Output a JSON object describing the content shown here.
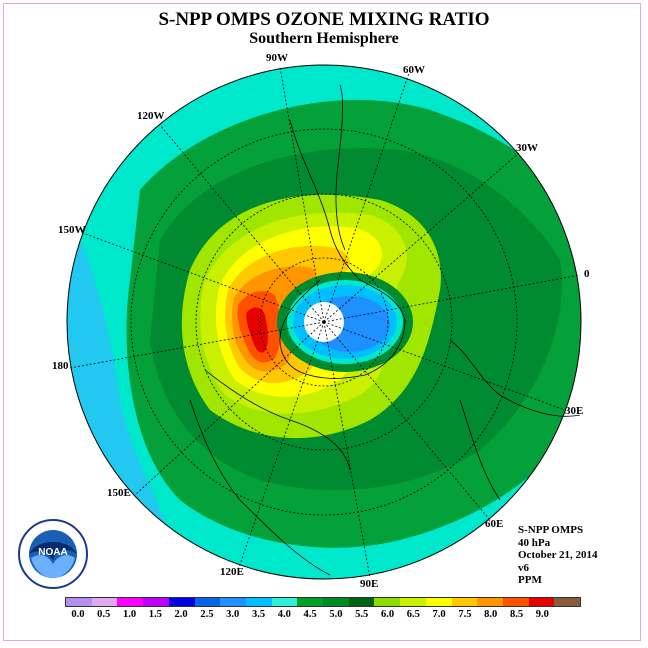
{
  "title": "S-NPP OMPS OZONE MIXING RATIO",
  "subtitle": "Southern Hemisphere",
  "longitude_labels": [
    {
      "key": "90W",
      "text": "90W"
    },
    {
      "key": "60W",
      "text": "60W"
    },
    {
      "key": "120W",
      "text": "120W"
    },
    {
      "key": "30W",
      "text": "30W"
    },
    {
      "key": "150W",
      "text": "150W"
    },
    {
      "key": "0",
      "text": "0"
    },
    {
      "key": "180",
      "text": "180"
    },
    {
      "key": "30E",
      "text": "30E"
    },
    {
      "key": "150E",
      "text": "150E"
    },
    {
      "key": "60E",
      "text": "60E"
    },
    {
      "key": "120E",
      "text": "120E"
    },
    {
      "key": "90E",
      "text": "90E"
    }
  ],
  "info": {
    "instrument": "S-NPP OMPS",
    "level": "40 hPa",
    "date": "October 21, 2014",
    "version": "v6",
    "units": "PPM"
  },
  "logo_text": "NOAA",
  "colorbar": {
    "tick_labels": [
      "0.0",
      "0.5",
      "1.0",
      "1.5",
      "2.0",
      "2.5",
      "3.0",
      "3.5",
      "4.0",
      "4.5",
      "5.0",
      "5.5",
      "6.0",
      "6.5",
      "7.0",
      "7.5",
      "8.0",
      "8.5",
      "9.0"
    ],
    "colors": [
      "#b58ef0",
      "#e0a8f0",
      "#ff00ff",
      "#c000ff",
      "#0000e6",
      "#0a64e6",
      "#1e90ff",
      "#00bfff",
      "#30f0d8",
      "#00a028",
      "#008b22",
      "#006414",
      "#8cdc00",
      "#c8f000",
      "#ffff00",
      "#ffc800",
      "#ff9600",
      "#ff5000",
      "#e60000",
      "#8b5a3c"
    ]
  },
  "map_colors": {
    "background_band": "#00e8cc",
    "outer_ring": "#00e8cc",
    "level_4_5": "#04a03a",
    "level_5_0": "#008b30",
    "level_5_5": "#a0e600",
    "level_6_0": "#c8f000",
    "level_6_5": "#ffff00",
    "level_7_0": "#ffc800",
    "level_7_5": "#ff9600",
    "level_8_0": "#ff5000",
    "level_8_5": "#e60000",
    "hole_outer": "#00bfff",
    "hole_inner": "#1e90ff",
    "pole": "#ffffff"
  }
}
